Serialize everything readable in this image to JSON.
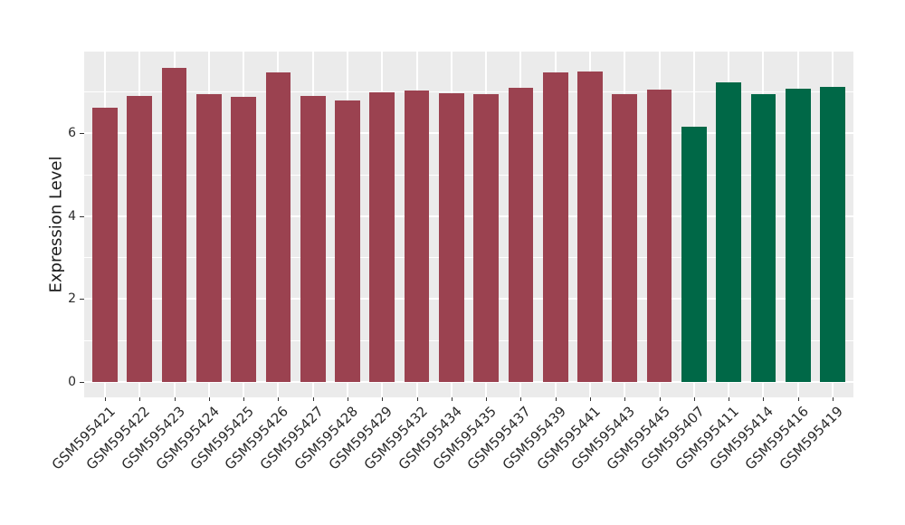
{
  "chart_data": {
    "type": "bar",
    "title": "",
    "xlabel": "",
    "ylabel": "Expression Level",
    "categories": [
      "GSM595421",
      "GSM595422",
      "GSM595423",
      "GSM595424",
      "GSM595425",
      "GSM595426",
      "GSM595427",
      "GSM595428",
      "GSM595429",
      "GSM595432",
      "GSM595434",
      "GSM595435",
      "GSM595437",
      "GSM595439",
      "GSM595441",
      "GSM595443",
      "GSM595445",
      "GSM595407",
      "GSM595411",
      "GSM595414",
      "GSM595416",
      "GSM595419"
    ],
    "values": [
      6.6,
      6.9,
      7.57,
      6.93,
      6.86,
      7.46,
      6.9,
      6.78,
      6.97,
      7.02,
      6.96,
      6.94,
      7.08,
      7.45,
      7.48,
      6.94,
      7.04,
      6.15,
      7.22,
      6.94,
      7.06,
      7.11
    ],
    "bar_groups": [
      "group1",
      "group1",
      "group1",
      "group1",
      "group1",
      "group1",
      "group1",
      "group1",
      "group1",
      "group1",
      "group1",
      "group1",
      "group1",
      "group1",
      "group1",
      "group1",
      "group1",
      "group2",
      "group2",
      "group2",
      "group2",
      "group2"
    ],
    "group_colors": {
      "group1": "#9B4250",
      "group2": "#006847"
    },
    "yticks_major": [
      0,
      2,
      4,
      6
    ],
    "yticks_minor": [
      1,
      3,
      5,
      7
    ],
    "ylim": [
      0,
      7.96
    ],
    "panel_background": "#EBEBEB",
    "gridline_color": "#ffffff",
    "grid": "on",
    "legend": "none"
  }
}
